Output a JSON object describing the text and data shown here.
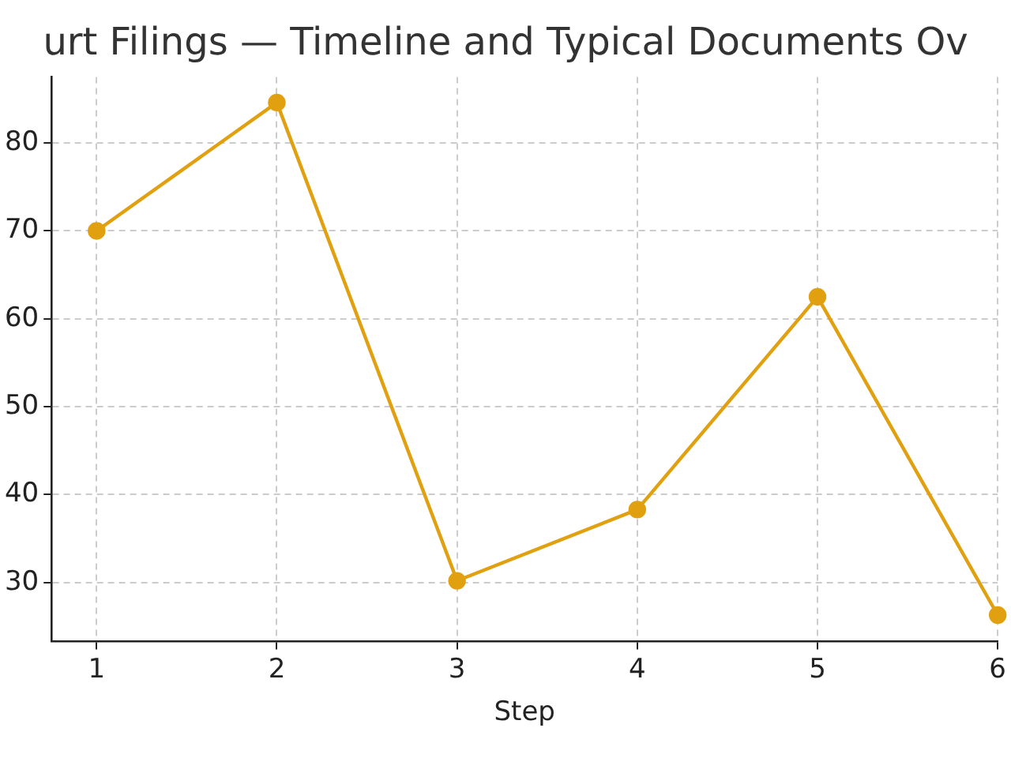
{
  "chart_data": {
    "type": "line",
    "title": "urt Filings — Timeline and Typical Documents Ov",
    "xlabel": "Step",
    "x": [
      1,
      2,
      3,
      4,
      5,
      6
    ],
    "series": [
      {
        "color": "#e0a010",
        "values": [
          70,
          84.6,
          30.2,
          38.3,
          62.5,
          26.3
        ]
      }
    ],
    "xlim": [
      0.75,
      6
    ],
    "xticks": [
      1,
      2,
      3,
      4,
      5,
      6
    ],
    "ylim": [
      23.3,
      87.5
    ],
    "yticks": [
      30,
      40,
      50,
      60,
      70,
      80
    ],
    "grid": true,
    "marker": "circle",
    "line_style": "solid",
    "legend": false
  }
}
